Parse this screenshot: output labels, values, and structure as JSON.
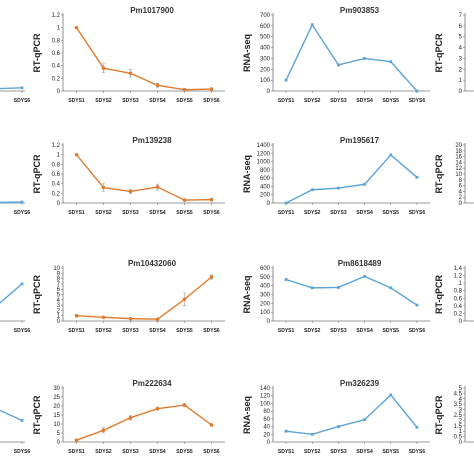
{
  "chart_data": [
    {
      "type": "line",
      "title": "",
      "ylabel": "",
      "categories": [
        "SDYS5",
        "SDYS6"
      ],
      "series": [
        {
          "values": [
            0.03,
            0.05
          ]
        }
      ],
      "ylim": [
        0,
        1.2
      ],
      "yticks": [],
      "color": "#5ba3d9",
      "partial": true
    },
    {
      "type": "line",
      "title": "Pm1017900",
      "ylabel": "RT-qPCR",
      "categories": [
        "SDYS1",
        "SDYS2",
        "SDYS3",
        "SDYS4",
        "SDYS5",
        "SDYS6"
      ],
      "series": [
        {
          "values": [
            1.0,
            0.36,
            0.28,
            0.09,
            0.02,
            0.03
          ]
        }
      ],
      "errors": [
        0,
        0.07,
        0.06,
        0.03,
        0.01,
        0.02
      ],
      "ylim": [
        0,
        1.2
      ],
      "yticks": [
        0,
        0.2,
        0.4,
        0.6,
        0.8,
        1,
        1.2
      ],
      "color": "#e07b2e"
    },
    {
      "type": "line",
      "title": "Pm903853",
      "ylabel": "RNA-seq",
      "categories": [
        "SDYS1",
        "SDYS2",
        "SDYS3",
        "SDYS4",
        "SDYS5",
        "SDYS6"
      ],
      "series": [
        {
          "values": [
            100,
            610,
            240,
            300,
            270,
            0
          ]
        }
      ],
      "ylim": [
        0,
        700
      ],
      "yticks": [
        0,
        100,
        200,
        300,
        400,
        500,
        600,
        700
      ],
      "color": "#5ba3d9"
    },
    {
      "type": "line",
      "title": "",
      "ylabel": "RT-qPCR",
      "categories": [],
      "series": [],
      "ylim": [
        0,
        7
      ],
      "yticks": [
        0,
        1,
        2,
        3,
        4,
        5,
        6,
        7
      ],
      "color": "#5ba3d9",
      "partial": true
    },
    {
      "type": "line",
      "title": "",
      "ylabel": "",
      "categories": [
        "SDYS5",
        "SDYS6"
      ],
      "series": [
        {
          "values": [
            0.01,
            0.02
          ]
        }
      ],
      "ylim": [
        0,
        1.2
      ],
      "yticks": [],
      "color": "#5ba3d9",
      "partial": true
    },
    {
      "type": "line",
      "title": "Pm139238",
      "ylabel": "RT-qPCR",
      "categories": [
        "SDYS1",
        "SDYS2",
        "SDYS3",
        "SDYS4",
        "SDYS5",
        "SDYS6"
      ],
      "series": [
        {
          "values": [
            1.0,
            0.32,
            0.24,
            0.33,
            0.06,
            0.07
          ]
        }
      ],
      "errors": [
        0,
        0.08,
        0.04,
        0.06,
        0.02,
        0.03
      ],
      "ylim": [
        0,
        1.2
      ],
      "yticks": [
        0,
        0.2,
        0.4,
        0.6,
        0.8,
        1,
        1.2
      ],
      "color": "#e07b2e"
    },
    {
      "type": "line",
      "title": "Pm195617",
      "ylabel": "RNA-seq",
      "categories": [
        "SDYS1",
        "SDYS2",
        "SDYS3",
        "SDYS4",
        "SDYS5",
        "SDYS6"
      ],
      "series": [
        {
          "values": [
            0,
            320,
            360,
            450,
            1160,
            620
          ]
        }
      ],
      "ylim": [
        0,
        1400
      ],
      "yticks": [
        0,
        200,
        400,
        600,
        800,
        1000,
        1200,
        1400
      ],
      "color": "#5ba3d9"
    },
    {
      "type": "line",
      "title": "",
      "ylabel": "RT-qPCR",
      "categories": [],
      "series": [],
      "ylim": [
        0,
        20
      ],
      "yticks": [
        0,
        2,
        4,
        6,
        8,
        10,
        12,
        14,
        16,
        18,
        20
      ],
      "color": "#5ba3d9",
      "partial": true
    },
    {
      "type": "line",
      "title": "",
      "ylabel": "",
      "categories": [
        "SDYS5",
        "SDYS6"
      ],
      "series": [
        {
          "values": [
            0.5,
            7
          ]
        }
      ],
      "ylim": [
        0,
        10
      ],
      "yticks": [],
      "color": "#5ba3d9",
      "partial": true
    },
    {
      "type": "line",
      "title": "Pm10432060",
      "ylabel": "RT-qPCR",
      "categories": [
        "SDYS1",
        "SDYS2",
        "SDYS3",
        "SDYS4",
        "SDYS5",
        "SDYS6"
      ],
      "series": [
        {
          "values": [
            1.0,
            0.7,
            0.45,
            0.35,
            4.1,
            8.3
          ]
        }
      ],
      "errors": [
        0,
        0.1,
        0.1,
        0.05,
        1.2,
        0.4
      ],
      "ylim": [
        0,
        10
      ],
      "yticks": [
        0,
        1,
        2,
        3,
        4,
        5,
        6,
        7,
        8,
        9,
        10
      ],
      "color": "#e07b2e"
    },
    {
      "type": "line",
      "title": "Pm8618489",
      "ylabel": "RNA-seq",
      "categories": [
        "SDYS1",
        "SDYS2",
        "SDYS3",
        "SDYS4",
        "SDYS5",
        "SDYS6"
      ],
      "series": [
        {
          "values": [
            470,
            375,
            380,
            505,
            375,
            180
          ]
        }
      ],
      "ylim": [
        0,
        600
      ],
      "yticks": [
        0,
        100,
        200,
        300,
        400,
        500,
        600
      ],
      "color": "#5ba3d9"
    },
    {
      "type": "line",
      "title": "",
      "ylabel": "RT-qPCR",
      "categories": [],
      "series": [],
      "ylim": [
        0,
        1.4
      ],
      "yticks": [
        0,
        0.2,
        0.4,
        0.6,
        0.8,
        1,
        1.2,
        1.4
      ],
      "color": "#5ba3d9",
      "partial": true
    },
    {
      "type": "line",
      "title": "",
      "ylabel": "",
      "categories": [
        "SDYS5",
        "SDYS6"
      ],
      "series": [
        {
          "values": [
            22,
            12
          ]
        }
      ],
      "ylim": [
        0,
        30
      ],
      "yticks": [],
      "color": "#5ba3d9",
      "partial": true
    },
    {
      "type": "line",
      "title": "Pm222634",
      "ylabel": "RT-qPCR",
      "categories": [
        "SDYS1",
        "SDYS2",
        "SDYS3",
        "SDYS4",
        "SDYS5",
        "SDYS6"
      ],
      "series": [
        {
          "values": [
            1,
            6.5,
            13.5,
            18.5,
            20.5,
            9.5
          ]
        }
      ],
      "errors": [
        0,
        1.5,
        1.2,
        0.8,
        0.8,
        0.5
      ],
      "ylim": [
        0,
        30
      ],
      "yticks": [
        0,
        5,
        10,
        15,
        20,
        25,
        30
      ],
      "color": "#e07b2e"
    },
    {
      "type": "line",
      "title": "Pm326239",
      "ylabel": "RNA-seq",
      "categories": [
        "SDYS1",
        "SDYS2",
        "SDYS3",
        "SDYS4",
        "SDYS5",
        "SDYS6"
      ],
      "series": [
        {
          "values": [
            28,
            20,
            40,
            58,
            122,
            38
          ]
        }
      ],
      "ylim": [
        0,
        140
      ],
      "yticks": [
        0,
        20,
        40,
        60,
        80,
        100,
        120,
        140
      ],
      "color": "#5ba3d9"
    },
    {
      "type": "line",
      "title": "",
      "ylabel": "RT-qPCR",
      "categories": [],
      "series": [],
      "ylim": [
        0,
        5
      ],
      "yticks": [
        0,
        0.5,
        1,
        1.5,
        2,
        2.5,
        3,
        3.5,
        4,
        4.5,
        5
      ],
      "color": "#5ba3d9",
      "partial": true
    }
  ]
}
